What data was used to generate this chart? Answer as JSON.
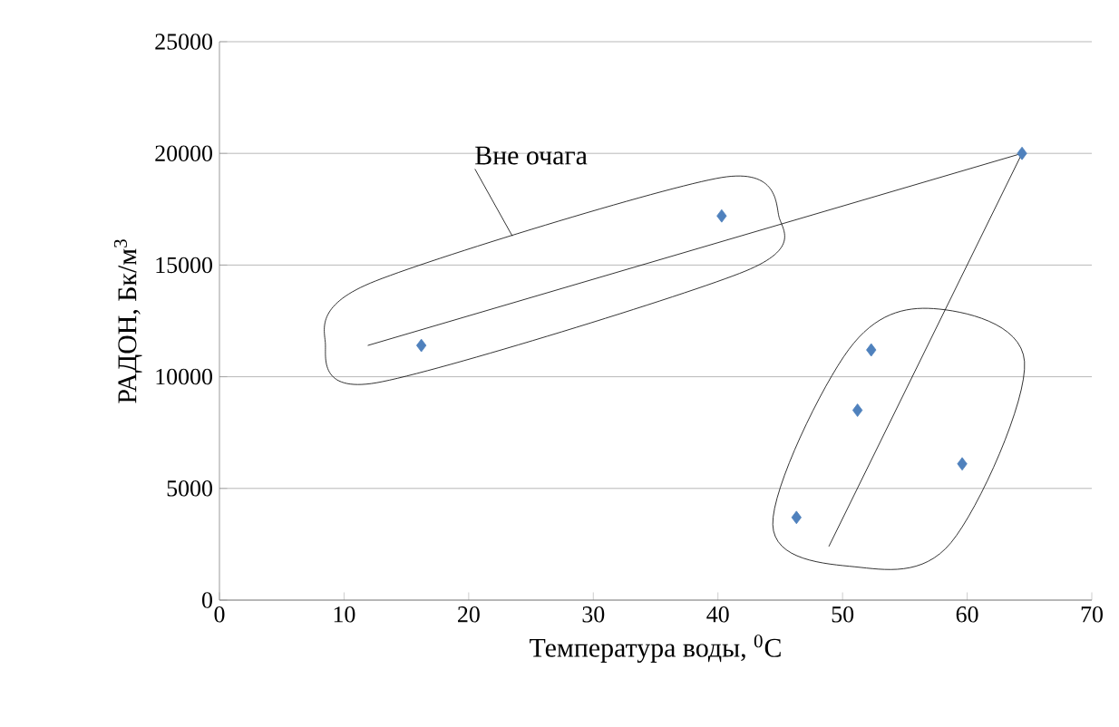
{
  "chart_data": {
    "type": "scatter",
    "xlabel": "Температура воды, $^{0}$C",
    "ylabel": "РАДОН, Бк/м$^{3}$",
    "annotations": [
      "Вне очага"
    ],
    "xlim": [
      0,
      70
    ],
    "xticks": [
      0,
      10,
      20,
      30,
      40,
      50,
      60,
      70
    ],
    "ylim": [
      0,
      25000
    ],
    "yticks": [
      0,
      5000,
      10000,
      15000,
      20000,
      25000
    ],
    "grid": "y",
    "marker": "diamond",
    "series": [
      {
        "type": "scatter",
        "color": "#4f81bd",
        "x": [
          16.2,
          40.3,
          64.4,
          52.3,
          51.2,
          59.6,
          46.3
        ],
        "values": [
          11400,
          17200,
          20000,
          11200,
          8500,
          6100,
          3700
        ]
      },
      {
        "type": "line",
        "color": "#000000",
        "marker": "none",
        "line_style": "solid",
        "x": [
          11.9,
          64.4
        ],
        "values": [
          11400,
          20000
        ]
      },
      {
        "type": "line",
        "color": "#000000",
        "marker": "none",
        "line_style": "solid",
        "x": [
          48.9,
          64.4
        ],
        "values": [
          2400,
          20000
        ]
      }
    ]
  }
}
